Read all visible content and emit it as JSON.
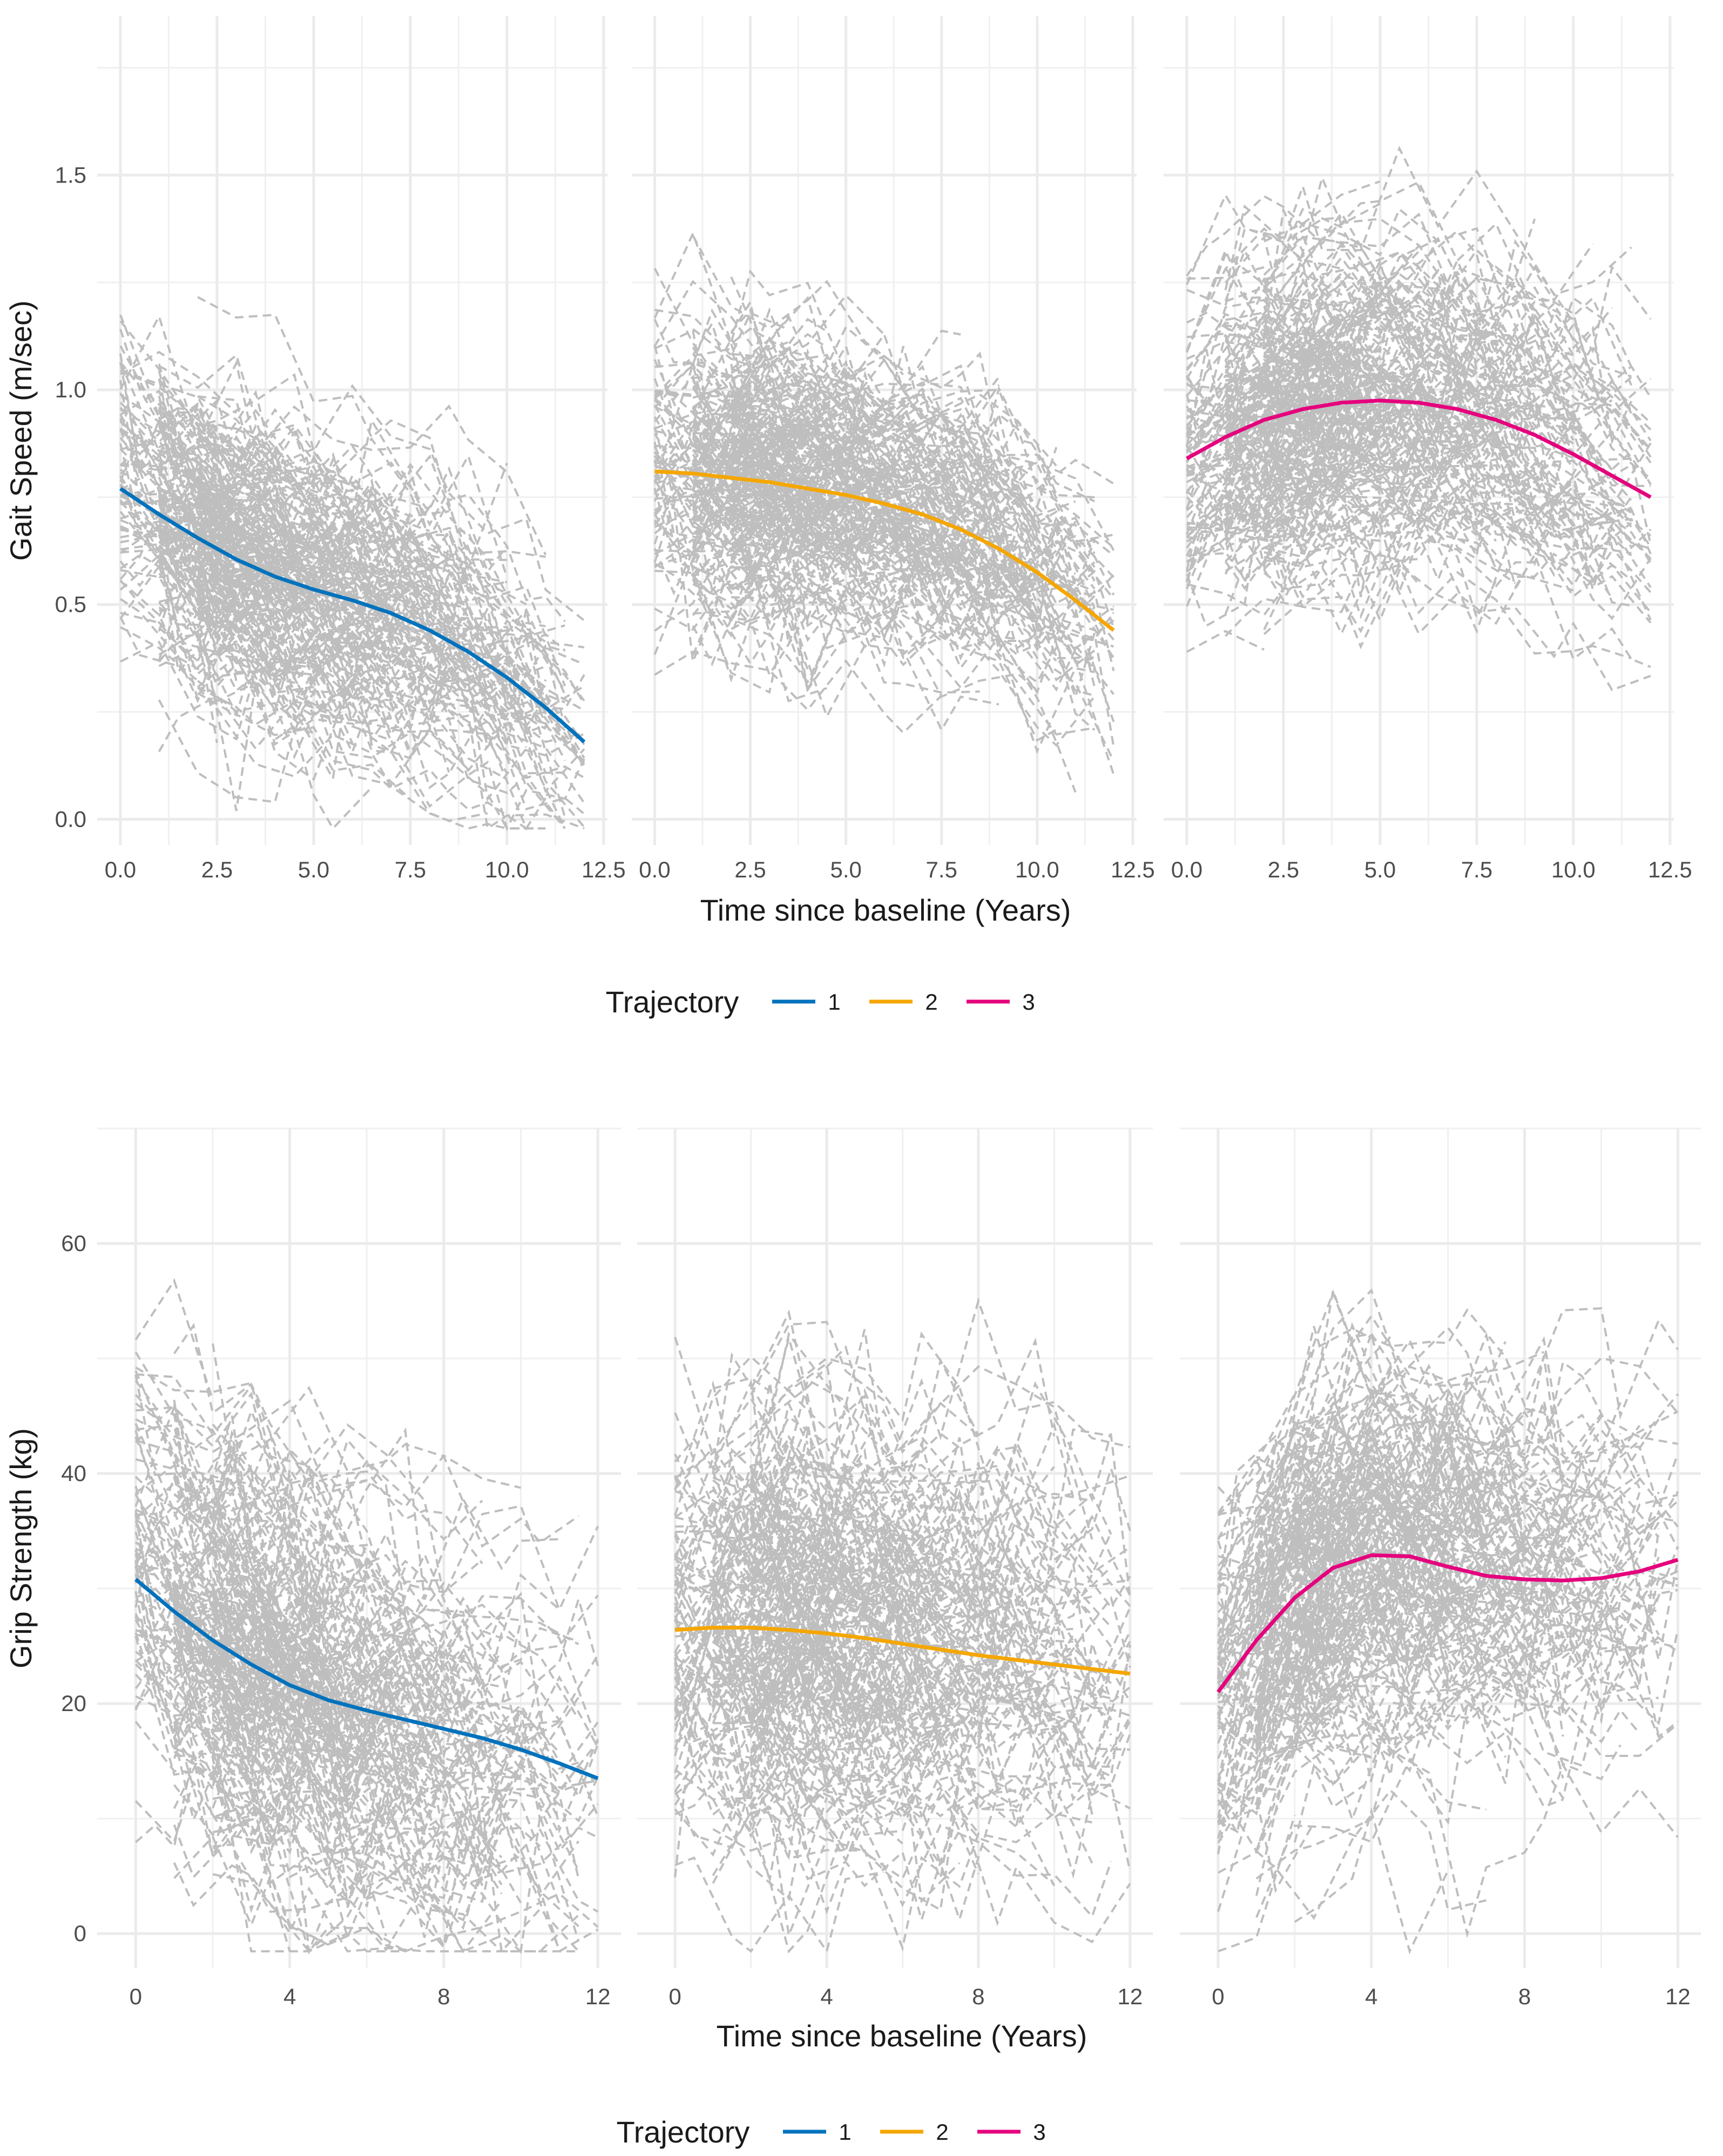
{
  "chart_data": [
    {
      "type": "line",
      "panel_layout": "facets",
      "facets": [
        "1",
        "2",
        "3"
      ],
      "xlabel": "Time since baseline (Years)",
      "ylabel": "Gait Speed (m/sec)",
      "xlim": [
        -0.6,
        12.6
      ],
      "ylim": [
        -0.06,
        1.87
      ],
      "x_ticks": [
        0,
        2.5,
        5,
        7.5,
        10,
        12.5
      ],
      "x_tick_labels": [
        "0.0",
        "2.5",
        "5.0",
        "7.5",
        "10.0",
        "12.5"
      ],
      "y_ticks": [
        0,
        0.5,
        1,
        1.5
      ],
      "y_tick_labels": [
        "0.0",
        "0.5",
        "1.0",
        "1.5"
      ],
      "grid": true,
      "legend": {
        "title": "Trajectory",
        "position": "bottom",
        "entries": [
          "1",
          "2",
          "3"
        ]
      },
      "series": [
        {
          "name": "1",
          "color": "#0072BD",
          "x": [
            0,
            1,
            2,
            3,
            4,
            5,
            6,
            7,
            8,
            9,
            10,
            11,
            12
          ],
          "y": [
            0.77,
            0.71,
            0.655,
            0.605,
            0.565,
            0.535,
            0.51,
            0.48,
            0.44,
            0.39,
            0.33,
            0.26,
            0.18
          ]
        },
        {
          "name": "2",
          "color": "#F5A600",
          "x": [
            0,
            1,
            2,
            3,
            4,
            5,
            6,
            7,
            8,
            9,
            10,
            11,
            12
          ],
          "y": [
            0.81,
            0.805,
            0.795,
            0.785,
            0.77,
            0.755,
            0.735,
            0.71,
            0.675,
            0.63,
            0.575,
            0.51,
            0.44
          ]
        },
        {
          "name": "3",
          "color": "#E5007D",
          "x": [
            0,
            1,
            2,
            3,
            4,
            5,
            6,
            7,
            8,
            9,
            10,
            11,
            12
          ],
          "y": [
            0.84,
            0.89,
            0.93,
            0.955,
            0.97,
            0.975,
            0.97,
            0.955,
            0.93,
            0.895,
            0.85,
            0.8,
            0.75
          ]
        }
      ],
      "individual_trajectories": {
        "style": "dashed",
        "color": "#BEBEBE"
      }
    },
    {
      "type": "line",
      "panel_layout": "facets",
      "facets": [
        "1",
        "2",
        "3"
      ],
      "xlabel": "Time since baseline (Years)",
      "ylabel": "Grip Strength (kg)",
      "xlim": [
        -1.0,
        12.6
      ],
      "ylim": [
        -3,
        70
      ],
      "x_ticks": [
        0,
        4,
        8,
        12
      ],
      "x_tick_labels": [
        "0",
        "4",
        "8",
        "12"
      ],
      "y_ticks": [
        0,
        20,
        40,
        60
      ],
      "y_tick_labels": [
        "0",
        "20",
        "40",
        "60"
      ],
      "grid": true,
      "legend": {
        "title": "Trajectory",
        "position": "bottom",
        "entries": [
          "1",
          "2",
          "3"
        ]
      },
      "series": [
        {
          "name": "1",
          "color": "#0072BD",
          "x": [
            0,
            1,
            2,
            3,
            4,
            5,
            6,
            7,
            8,
            9,
            10,
            11,
            12
          ],
          "y": [
            30.8,
            28.0,
            25.5,
            23.4,
            21.6,
            20.3,
            19.4,
            18.6,
            17.8,
            17.0,
            16.0,
            14.8,
            13.5
          ]
        },
        {
          "name": "2",
          "color": "#F5A600",
          "x": [
            0,
            1,
            2,
            3,
            4,
            5,
            6,
            7,
            8,
            9,
            10,
            11,
            12
          ],
          "y": [
            26.4,
            26.6,
            26.6,
            26.4,
            26.1,
            25.7,
            25.2,
            24.7,
            24.2,
            23.8,
            23.4,
            23.0,
            22.6
          ]
        },
        {
          "name": "3",
          "color": "#E5007D",
          "x": [
            0,
            1,
            2,
            3,
            4,
            5,
            6,
            7,
            8,
            9,
            10,
            11,
            12
          ],
          "y": [
            21.0,
            25.5,
            29.2,
            31.8,
            32.9,
            32.8,
            31.9,
            31.1,
            30.8,
            30.7,
            30.9,
            31.5,
            32.5
          ]
        }
      ],
      "individual_trajectories": {
        "style": "dashed",
        "color": "#BEBEBE"
      }
    }
  ]
}
